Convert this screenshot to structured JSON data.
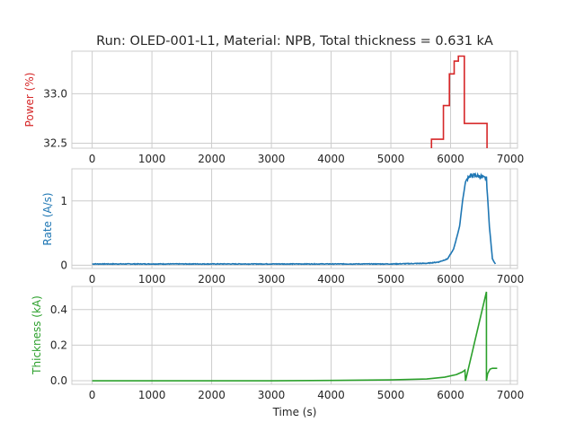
{
  "chart_data": {
    "title": "Run: OLED-001-L1, Material: NPB, Total thickness = 0.631 kA",
    "shared_xlabel": "Time (s)",
    "x_ticks": [
      0,
      1000,
      2000,
      3000,
      4000,
      5000,
      6000,
      7000
    ],
    "xlim": [
      -340,
      7120
    ],
    "grid": true,
    "panels": [
      {
        "type": "line",
        "ylabel": "Power (%)",
        "color": "#d62728",
        "ylim": [
          32.45,
          33.43
        ],
        "y_ticks": [
          32.5,
          33.0
        ],
        "y_tick_labels": [
          "32.5",
          "33.0"
        ],
        "step": true,
        "x": [
          5680,
          5680,
          5880,
          5880,
          5980,
          5980,
          6060,
          6060,
          6130,
          6130,
          6230,
          6230,
          6610,
          6610
        ],
        "y": [
          32.45,
          32.54,
          32.54,
          32.88,
          32.88,
          33.2,
          33.2,
          33.33,
          33.33,
          33.38,
          33.38,
          32.7,
          32.7,
          32.45
        ]
      },
      {
        "type": "line",
        "ylabel": "Rate (A/s)",
        "color": "#1f77b4",
        "ylim": [
          -0.05,
          1.5
        ],
        "y_ticks": [
          0,
          1
        ],
        "y_tick_labels": [
          "0",
          "1"
        ],
        "x": [
          0,
          1000,
          2000,
          3000,
          4000,
          5000,
          5600,
          5800,
          5950,
          6050,
          6150,
          6200,
          6250,
          6300,
          6400,
          6500,
          6550,
          6600,
          6650,
          6700,
          6750
        ],
        "y": [
          0.02,
          0.02,
          0.02,
          0.02,
          0.02,
          0.02,
          0.03,
          0.05,
          0.1,
          0.25,
          0.6,
          1.0,
          1.3,
          1.38,
          1.4,
          1.38,
          1.36,
          1.35,
          0.6,
          0.1,
          0.02
        ],
        "noise_amplitude": 0.06,
        "noise_range": [
          6280,
          6620
        ]
      },
      {
        "type": "line",
        "ylabel": "Thickness (kA)",
        "color": "#2ca02c",
        "ylim": [
          -0.02,
          0.53
        ],
        "y_ticks": [
          0.0,
          0.2,
          0.4
        ],
        "y_tick_labels": [
          "0.0",
          "0.2",
          "0.4"
        ],
        "x": [
          0,
          3000,
          4000,
          5000,
          5600,
          5900,
          6100,
          6200,
          6240,
          6250,
          6600,
          6600,
          6620,
          6660,
          6700,
          6780
        ],
        "y": [
          0.0,
          0.0,
          0.002,
          0.005,
          0.01,
          0.02,
          0.035,
          0.05,
          0.06,
          0.0,
          0.5,
          0.0,
          0.04,
          0.065,
          0.07,
          0.07
        ]
      }
    ]
  }
}
